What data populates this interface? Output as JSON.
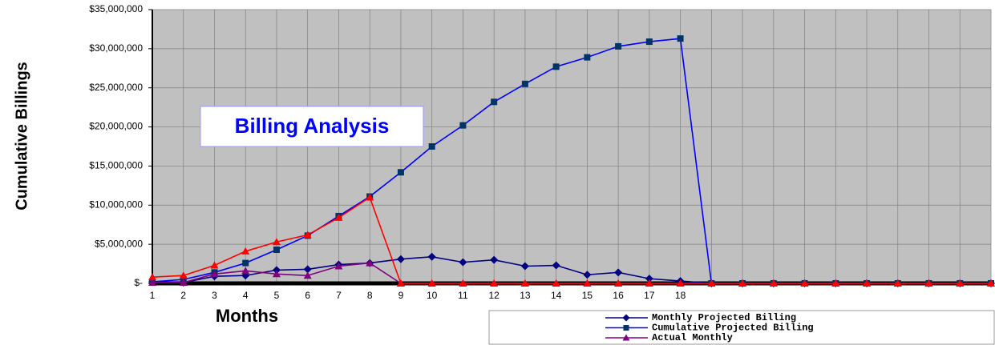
{
  "chart_data": {
    "type": "line",
    "annotation": "Billing Analysis",
    "y_label": "Cumulative Billings",
    "x_label": "Months",
    "categories": [
      "1",
      "2",
      "3",
      "4",
      "5",
      "6",
      "7",
      "8",
      "9",
      "10",
      "11",
      "12",
      "13",
      "14",
      "15",
      "16",
      "17",
      "18",
      null,
      null,
      null,
      null,
      null,
      null,
      null,
      null,
      null,
      null
    ],
    "ylim": [
      0,
      35000000
    ],
    "yticks": [
      {
        "value": 0,
        "label": "$-"
      },
      {
        "value": 5000000,
        "label": "$5,000,000"
      },
      {
        "value": 10000000,
        "label": "$10,000,000"
      },
      {
        "value": 15000000,
        "label": "$15,000,000"
      },
      {
        "value": 20000000,
        "label": "$20,000,000"
      },
      {
        "value": 25000000,
        "label": "$25,000,000"
      },
      {
        "value": 30000000,
        "label": "$30,000,000"
      },
      {
        "value": 35000000,
        "label": "$35,000,000"
      }
    ],
    "grid": true,
    "series": [
      {
        "name": "Monthly Projected Billing",
        "color": "#000080",
        "marker": "diamond",
        "values": [
          200000,
          100000,
          900000,
          1000000,
          1700000,
          1800000,
          2400000,
          2600000,
          3100000,
          3400000,
          2700000,
          3000000,
          2200000,
          2300000,
          1100000,
          1400000,
          600000,
          300000,
          0,
          0,
          0,
          0,
          0,
          0,
          0,
          0,
          0,
          0
        ]
      },
      {
        "name": "Cumulative Projected Billing",
        "color": "#0000ff",
        "marker_color": "#003366",
        "marker": "square",
        "values": [
          200000,
          500000,
          1400000,
          2600000,
          4300000,
          6100000,
          8600000,
          11100000,
          14200000,
          17500000,
          20200000,
          23200000,
          25500000,
          27700000,
          28900000,
          30300000,
          30900000,
          31300000,
          0,
          0,
          0,
          0,
          0,
          0,
          0,
          0,
          0,
          0
        ]
      },
      {
        "name": "Actual Monthly",
        "color": "#800080",
        "marker": "triangle",
        "values": [
          100000,
          100000,
          1200000,
          1600000,
          1200000,
          1000000,
          2200000,
          2600000,
          0,
          0,
          0,
          0,
          0,
          0,
          0,
          0,
          0,
          0,
          0,
          0,
          0,
          0,
          0,
          0,
          0,
          0,
          0,
          0
        ]
      },
      {
        "color": "#ff0000",
        "marker": "triangle",
        "values": [
          800000,
          1000000,
          2300000,
          4100000,
          5300000,
          6200000,
          8400000,
          11000000,
          0,
          0,
          0,
          0,
          0,
          0,
          0,
          0,
          0,
          0,
          0,
          0,
          0,
          0,
          0,
          0,
          0,
          0,
          0,
          0
        ]
      }
    ]
  }
}
